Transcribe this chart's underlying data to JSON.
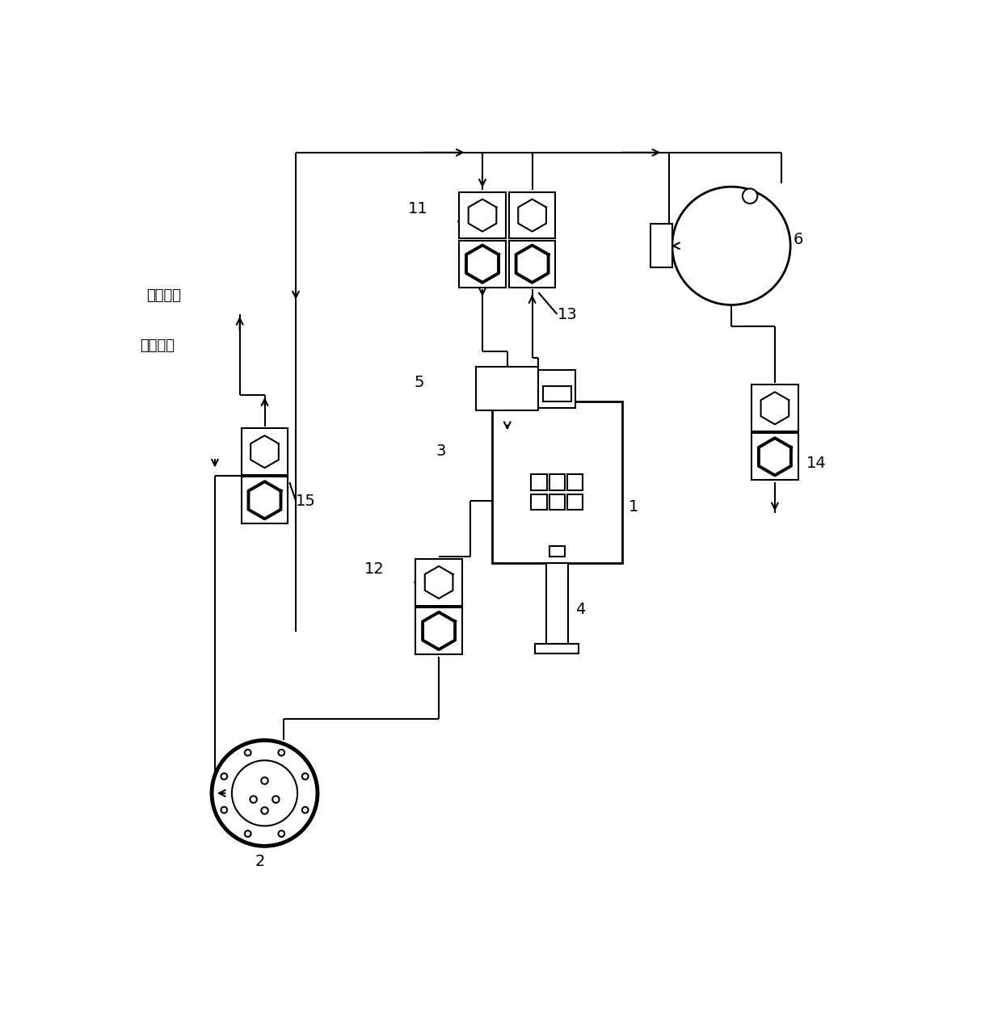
{
  "bg_color": "#ffffff",
  "line_color": "#000000",
  "lw": 1.5,
  "labels": {
    "oil_in": "油进端口",
    "oil_out": "出油端口",
    "1": "1",
    "2": "2",
    "3": "3",
    "4": "4",
    "5": "5",
    "6": "6",
    "11": "11",
    "12": "12",
    "13": "13",
    "14": "14",
    "15": "15"
  }
}
